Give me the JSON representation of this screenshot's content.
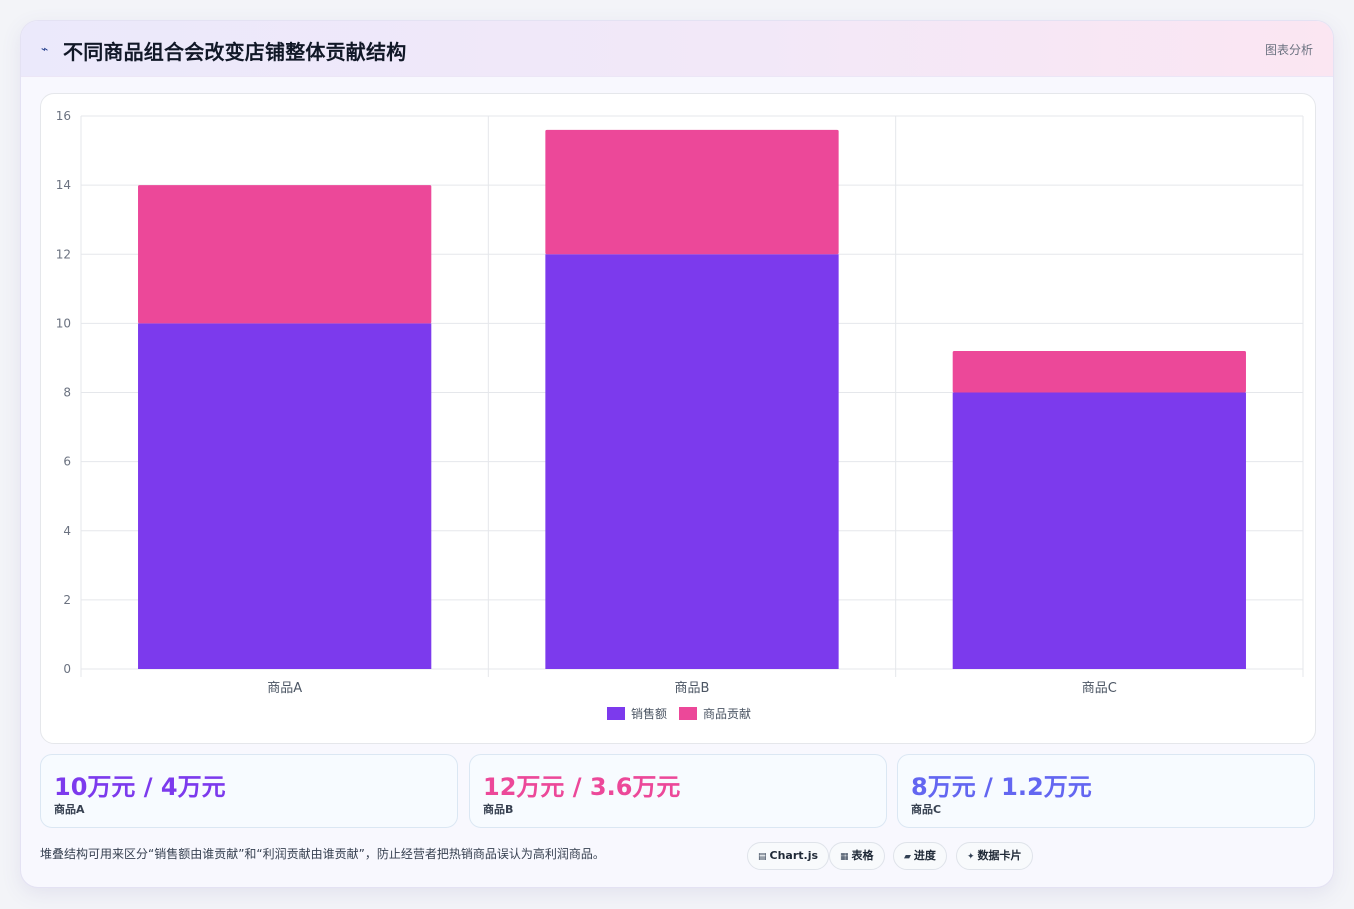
{
  "header": {
    "title": "不同商品组合会改变店铺整体贡献结构",
    "tag": "图表分析"
  },
  "colors": {
    "sales": "#7c3aed",
    "contribution": "#ec4899",
    "stat_a": "#7c3aed",
    "stat_b": "#ec4899",
    "stat_c": "#6366f1"
  },
  "chart_data": {
    "type": "bar",
    "stacked": true,
    "categories": [
      "商品A",
      "商品B",
      "商品C"
    ],
    "series": [
      {
        "name": "销售额",
        "color": "#7c3aed",
        "values": [
          10,
          12,
          8
        ]
      },
      {
        "name": "商品贡献",
        "color": "#ec4899",
        "values": [
          4,
          3.6,
          1.2
        ]
      }
    ],
    "ylim": [
      0,
      16
    ],
    "yticks": [
      "0",
      "2",
      "4",
      "6",
      "8",
      "10",
      "12",
      "14",
      "16"
    ],
    "grid": true,
    "legend": "bottom"
  },
  "stats": [
    {
      "value": "10万元 / 4万元",
      "label": "商品A"
    },
    {
      "value": "12万元 / 3.6万元",
      "label": "商品B"
    },
    {
      "value": "8万元 / 1.2万元",
      "label": "商品C"
    }
  ],
  "footnote": "堆叠结构可用来区分“销售额由谁贡献”和“利润贡献由谁贡献”，防止经营者把热销商品误认为高利润商品。",
  "chips": [
    {
      "icon": "chart-icon",
      "label": "Chart.js"
    },
    {
      "icon": "table-icon",
      "label": "表格"
    },
    {
      "icon": "progress-icon",
      "label": "进度"
    },
    {
      "icon": "card-icon",
      "label": "数据卡片"
    }
  ]
}
